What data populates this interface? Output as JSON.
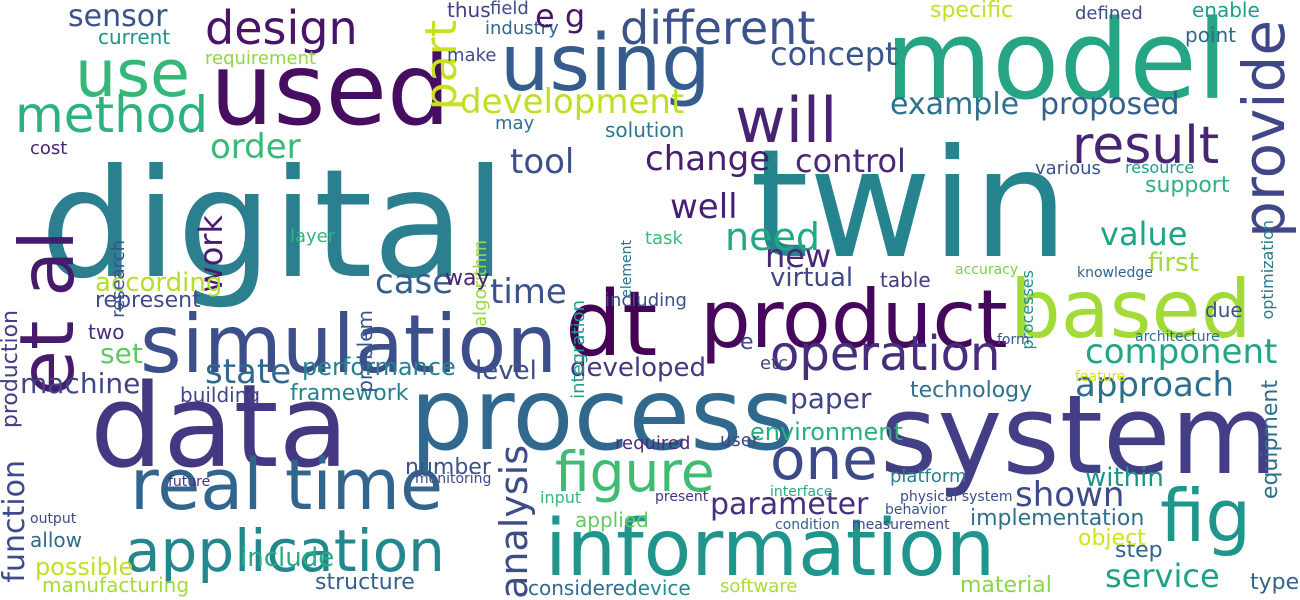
{
  "words": [
    {
      "text": "digital",
      "color": "#2b7f8e"
    },
    {
      "text": "twin",
      "color": "#26848e"
    },
    {
      "text": "model",
      "color": "#25a584"
    },
    {
      "text": "system",
      "color": "#433e85"
    },
    {
      "text": "data",
      "color": "#453882"
    },
    {
      "text": "process",
      "color": "#31688e"
    },
    {
      "text": "used",
      "color": "#470d60"
    },
    {
      "text": "using",
      "color": "#365c8d"
    },
    {
      "text": "product",
      "color": "#46085c"
    },
    {
      "text": "simulation",
      "color": "#3c4f8a"
    },
    {
      "text": "dt",
      "color": "#440154"
    },
    {
      "text": "information",
      "color": "#1f958b"
    },
    {
      "text": "real time",
      "color": "#32658e"
    },
    {
      "text": "based",
      "color": "#a2da37"
    },
    {
      "text": "et al",
      "color": "#481a6c"
    },
    {
      "text": "fig",
      "color": "#1f968b"
    },
    {
      "text": "application",
      "color": "#24878e"
    },
    {
      "text": "use",
      "color": "#35b779"
    },
    {
      "text": "will",
      "color": "#482374"
    },
    {
      "text": "provide",
      "color": "#3f4788"
    },
    {
      "text": "different",
      "color": "#3b528b"
    },
    {
      "text": "design",
      "color": "#481467"
    },
    {
      "text": "part",
      "color": "#c8e020"
    },
    {
      "text": "operation",
      "color": "#472d7b"
    },
    {
      "text": "one",
      "color": "#3e4989"
    },
    {
      "text": "figure",
      "color": "#3fbc73"
    },
    {
      "text": "method",
      "color": "#2db27d"
    },
    {
      "text": "result",
      "color": "#482475"
    },
    {
      "text": "development",
      "color": "#bddf26"
    },
    {
      "text": "example",
      "color": "#2c718e"
    },
    {
      "text": "proposed",
      "color": "#355f8d"
    },
    {
      "text": "component",
      "color": "#21a685"
    },
    {
      "text": "approach",
      "color": "#2e6f8e"
    },
    {
      "text": "service",
      "color": "#1fa187"
    },
    {
      "text": "shown",
      "color": "#3e4a89"
    },
    {
      "text": "parameter",
      "color": "#46307e"
    },
    {
      "text": "analysis",
      "color": "#3d4d8a"
    },
    {
      "text": "state",
      "color": "#31688e"
    },
    {
      "text": "time",
      "color": "#3b528b"
    },
    {
      "text": "case",
      "color": "#365d8d"
    },
    {
      "text": "control",
      "color": "#482878"
    },
    {
      "text": "order",
      "color": "#38b977"
    },
    {
      "text": "tool",
      "color": "#3d4e8a"
    },
    {
      "text": "change",
      "color": "#481f70"
    },
    {
      "text": "well",
      "color": "#482071"
    },
    {
      "text": "need",
      "color": "#22a884"
    },
    {
      "text": "value",
      "color": "#20a486"
    },
    {
      "text": "concept",
      "color": "#3a548c"
    },
    {
      "text": "sensor",
      "color": "#3b518b"
    },
    {
      "text": "work",
      "color": "#481b6d"
    },
    {
      "text": "set",
      "color": "#5ec962"
    },
    {
      "text": "machine",
      "color": "#404588"
    },
    {
      "text": "function",
      "color": "#3e4a89"
    },
    {
      "text": "level",
      "color": "#3d4d8a"
    },
    {
      "text": "developed",
      "color": "#453882"
    },
    {
      "text": "performance",
      "color": "#26828e"
    },
    {
      "text": "framework",
      "color": "#26818e"
    },
    {
      "text": "paper",
      "color": "#414487"
    },
    {
      "text": "environment",
      "color": "#29af7f"
    },
    {
      "text": "new",
      "color": "#482878"
    },
    {
      "text": "virtual",
      "color": "#3f4889"
    },
    {
      "text": "first",
      "color": "#a0da39"
    },
    {
      "text": "support",
      "color": "#2db27d"
    },
    {
      "text": "according",
      "color": "#b5de2b"
    },
    {
      "text": "possible",
      "color": "#c2df23"
    },
    {
      "text": "include",
      "color": "#27ad81"
    },
    {
      "text": "structure",
      "color": "#35608d"
    },
    {
      "text": "implementation",
      "color": "#2d708e"
    },
    {
      "text": "within",
      "color": "#20928c"
    },
    {
      "text": "technology",
      "color": "#2d718e"
    },
    {
      "text": "equipment",
      "color": "#2e6f8e"
    },
    {
      "text": "step",
      "color": "#33638d"
    },
    {
      "text": "type",
      "color": "#32648e"
    },
    {
      "text": "material",
      "color": "#8bd646"
    },
    {
      "text": "considered",
      "color": "#2f6b8e"
    },
    {
      "text": "manufacturing",
      "color": "#a5db36"
    },
    {
      "text": "object",
      "color": "#d2e21b"
    },
    {
      "text": "applied",
      "color": "#60ca60"
    },
    {
      "text": "number",
      "color": "#3b528b"
    },
    {
      "text": "building",
      "color": "#3f4788"
    },
    {
      "text": "specific",
      "color": "#c0df25"
    },
    {
      "text": "defined",
      "color": "#3e4c8a"
    },
    {
      "text": "enable",
      "color": "#1f9e89"
    },
    {
      "text": "point",
      "color": "#31678e"
    },
    {
      "text": "industry",
      "color": "#31688e"
    },
    {
      "text": "current",
      "color": "#20938c"
    },
    {
      "text": "requirement",
      "color": "#8ed645"
    },
    {
      "text": "solution",
      "color": "#2a788e"
    },
    {
      "text": "integration",
      "color": "#1e9b8a"
    },
    {
      "text": "problem",
      "color": "#3a548c"
    },
    {
      "text": "layer",
      "color": "#32b67a"
    },
    {
      "text": "research",
      "color": "#3a538b"
    },
    {
      "text": "production",
      "color": "#424086"
    },
    {
      "text": "two",
      "color": "#472c7a"
    },
    {
      "text": "including",
      "color": "#3d4e8a"
    },
    {
      "text": "table",
      "color": "#433d84"
    },
    {
      "text": "device",
      "color": "#23898e"
    },
    {
      "text": "software",
      "color": "#a8db34"
    },
    {
      "text": "thus",
      "color": "#423f85"
    },
    {
      "text": "field",
      "color": "#3d4d8a"
    },
    {
      "text": "e g",
      "color": "#48186a"
    },
    {
      "text": "make",
      "color": "#3e4a89"
    },
    {
      "text": "may",
      "color": "#2c718e"
    },
    {
      "text": "algorithm",
      "color": "#9bd93c"
    },
    {
      "text": "task",
      "color": "#3bbb75"
    },
    {
      "text": "way",
      "color": "#482576"
    },
    {
      "text": "represent",
      "color": "#3e4c8a"
    },
    {
      "text": "allow",
      "color": "#306a8e"
    },
    {
      "text": "user",
      "color": "#3f4788"
    },
    {
      "text": "required",
      "color": "#472d7b"
    },
    {
      "text": "due",
      "color": "#3a548c"
    },
    {
      "text": "accuracy",
      "color": "#7ad151"
    },
    {
      "text": "knowledge",
      "color": "#33628d"
    },
    {
      "text": "resource",
      "color": "#1f9e89"
    },
    {
      "text": "various",
      "color": "#3b528b"
    },
    {
      "text": "cost",
      "color": "#482374"
    },
    {
      "text": "optimization",
      "color": "#2a788e"
    },
    {
      "text": "processes",
      "color": "#21918c"
    },
    {
      "text": "element",
      "color": "#2c728e"
    },
    {
      "text": "e",
      "color": "#404688"
    },
    {
      "text": "etc",
      "color": "#3e4989"
    },
    {
      "text": "platform",
      "color": "#27808e"
    },
    {
      "text": "input",
      "color": "#35b779"
    },
    {
      "text": "feature",
      "color": "#d8e219"
    },
    {
      "text": "architecture",
      "color": "#2e6e8e"
    },
    {
      "text": "form",
      "color": "#39568c"
    },
    {
      "text": "output",
      "color": "#3f4788"
    },
    {
      "text": "physical system",
      "color": "#3d4e8a"
    },
    {
      "text": "monitoring",
      "color": "#3e4a89"
    },
    {
      "text": "future",
      "color": "#46337f"
    },
    {
      "text": "present",
      "color": "#46327e"
    },
    {
      "text": "interface",
      "color": "#25ab82"
    },
    {
      "text": "condition",
      "color": "#35608d"
    },
    {
      "text": "measurement",
      "color": "#3e4989"
    },
    {
      "text": "behavior",
      "color": "#39558c"
    }
  ]
}
